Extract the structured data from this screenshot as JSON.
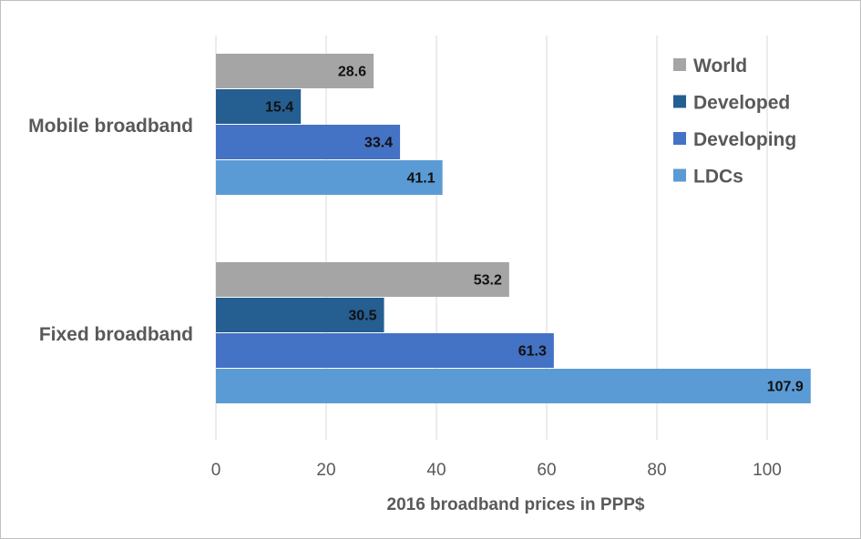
{
  "chart_data": {
    "type": "bar",
    "orientation": "horizontal",
    "title": "",
    "categories": [
      "Mobile broadband",
      "Fixed broadband"
    ],
    "series": [
      {
        "name": "World",
        "color": "#a5a5a5",
        "values": [
          28.6,
          53.2
        ]
      },
      {
        "name": "Developed",
        "color": "#255e91",
        "values": [
          15.4,
          30.5
        ]
      },
      {
        "name": "Developing",
        "color": "#4472c4",
        "values": [
          33.4,
          61.3
        ]
      },
      {
        "name": "LDCs",
        "color": "#5b9bd5",
        "values": [
          41.1,
          107.9
        ]
      }
    ],
    "xlabel": "2016 broadband  prices in PPP$",
    "ylabel": "",
    "xlim": [
      0,
      108
    ],
    "xticks": [
      0,
      20,
      40,
      60,
      80,
      100
    ],
    "xtick_labels": [
      "0",
      "20",
      "40",
      "60",
      "80",
      "100"
    ],
    "value_labels": {
      "World": [
        "28.6",
        "53.2"
      ],
      "Developed": [
        "15.4",
        "30.5"
      ],
      "Developing": [
        "33.4",
        "61.3"
      ],
      "LDCs": [
        "41.1",
        "107.9"
      ]
    },
    "grid": "vertical",
    "legend": "top-right"
  }
}
